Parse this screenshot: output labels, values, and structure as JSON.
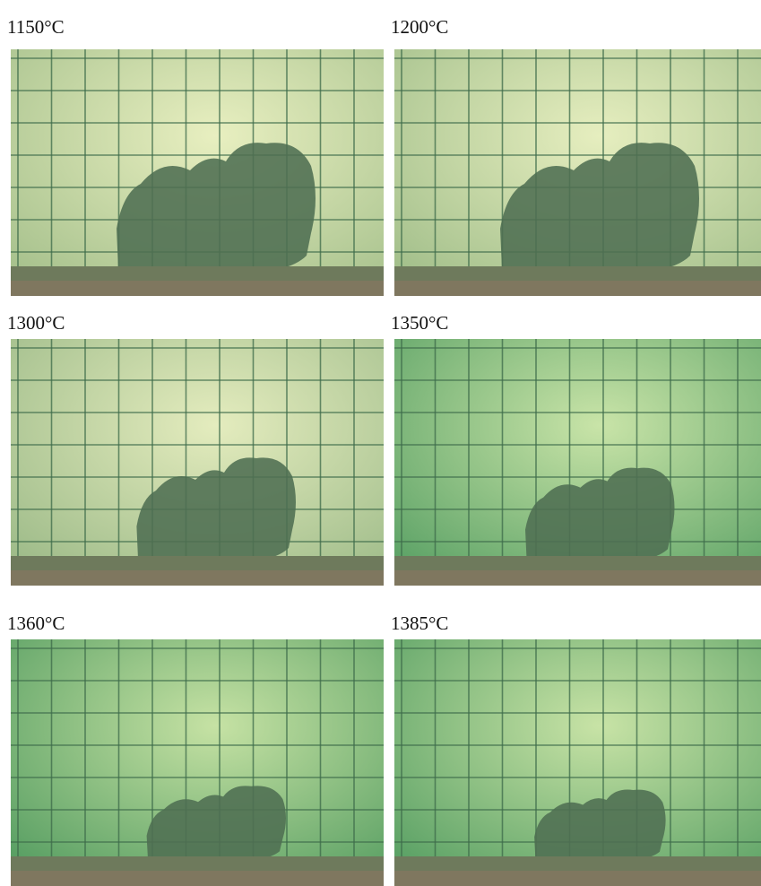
{
  "panels": [
    {
      "label": "1150°C"
    },
    {
      "label": "1200°C"
    },
    {
      "label": "1300°C"
    },
    {
      "label": "1350°C"
    },
    {
      "label": "1360°C"
    },
    {
      "label": "1385°C"
    }
  ]
}
